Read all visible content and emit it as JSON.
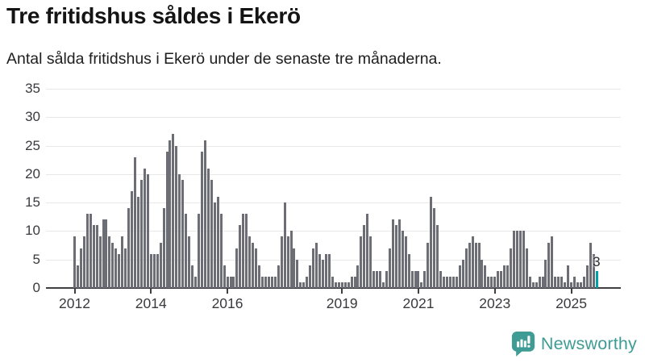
{
  "header": {
    "title": "Tre fritidshus såldes i Ekerö",
    "subtitle": "Antal sålda fritidshus i Ekerö under de senaste tre månaderna."
  },
  "chart_data": {
    "type": "bar",
    "title": "Tre fritidshus såldes i Ekerö",
    "subtitle": "Antal sålda fritidshus i Ekerö under de senaste tre månaderna.",
    "x_start": "2012-01",
    "x_end": "2025-09",
    "values": [
      9,
      4,
      7,
      9,
      13,
      13,
      11,
      11,
      9,
      12,
      12,
      9,
      8,
      7,
      6,
      9,
      7,
      14,
      17,
      23,
      16,
      19,
      21,
      20,
      6,
      6,
      6,
      8,
      14,
      24,
      26,
      27,
      25,
      20,
      19,
      13,
      9,
      4,
      2,
      13,
      24,
      26,
      21,
      19,
      15,
      16,
      13,
      4,
      2,
      2,
      2,
      7,
      11,
      13,
      13,
      9,
      8,
      7,
      4,
      2,
      2,
      2,
      2,
      2,
      4,
      9,
      15,
      9,
      10,
      7,
      5,
      1,
      1,
      2,
      4,
      7,
      8,
      6,
      5,
      6,
      6,
      2,
      1,
      1,
      1,
      1,
      1,
      2,
      2,
      4,
      9,
      11,
      13,
      9,
      3,
      3,
      3,
      1,
      3,
      7,
      12,
      11,
      12,
      10,
      9,
      6,
      3,
      3,
      3,
      1,
      3,
      8,
      16,
      14,
      11,
      3,
      2,
      2,
      2,
      2,
      2,
      4,
      5,
      7,
      8,
      9,
      8,
      8,
      5,
      4,
      2,
      2,
      2,
      3,
      3,
      4,
      4,
      7,
      10,
      10,
      10,
      10,
      7,
      2,
      1,
      1,
      2,
      2,
      5,
      8,
      9,
      2,
      2,
      2,
      1,
      4,
      1,
      2,
      1,
      1,
      2,
      4,
      8,
      6,
      3
    ],
    "highlight_last_value": 3,
    "annotation": {
      "text": "3"
    },
    "ylim": [
      0,
      35
    ],
    "yticks": [
      0,
      5,
      10,
      15,
      20,
      25,
      30,
      35
    ],
    "xtick_years": [
      2012,
      2014,
      2016,
      2019,
      2021,
      2023,
      2025
    ],
    "grid": "horizontal",
    "legend": "none",
    "colors": {
      "bar": "#6d6d76",
      "highlight": "#00a3a5",
      "grid": "#e8e8e8",
      "axis": "#3f3f44",
      "tick_text": "#3a3a3e",
      "annotation_text": "#2e2e32"
    }
  },
  "footer": {
    "brand": "Newsworthy",
    "brand_color": "#3f9c94",
    "logo_icon": "bar-chart-speech-bubble"
  }
}
